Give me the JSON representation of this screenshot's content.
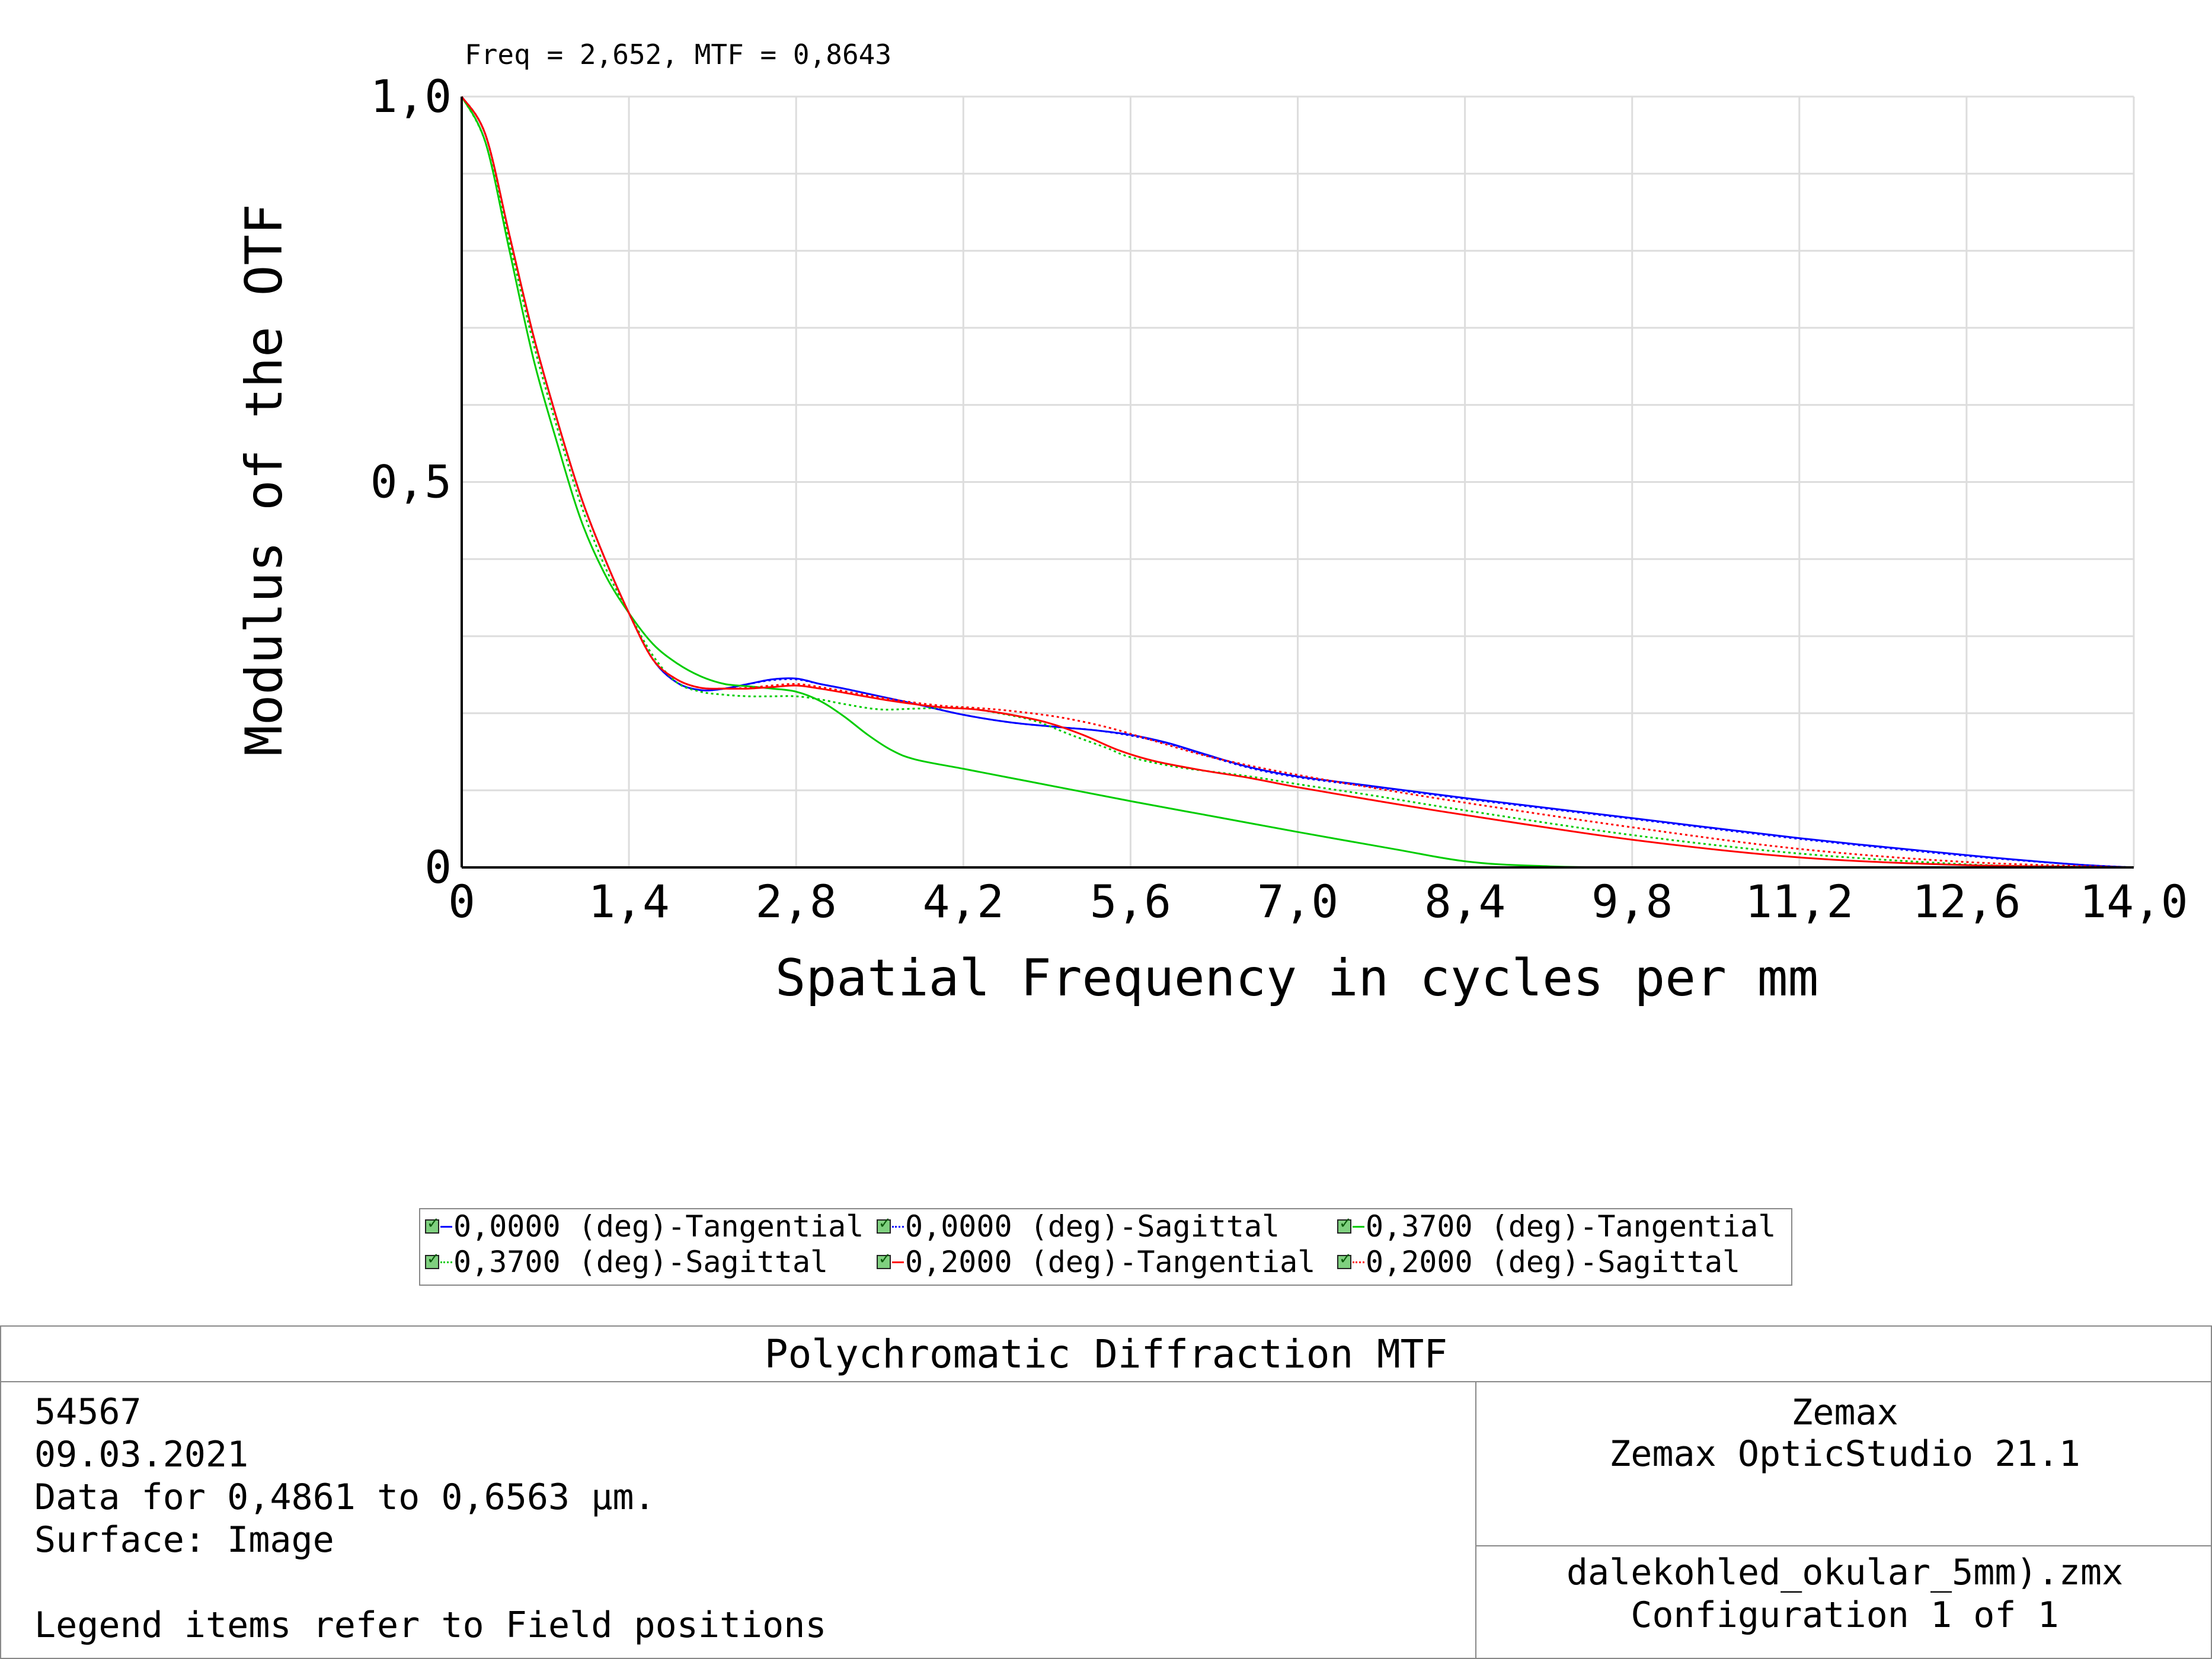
{
  "cursor_readout": "Freq = 2,652, MTF = 0,8643",
  "chart_data": {
    "type": "line",
    "title": "Polychromatic Diffraction MTF",
    "xlabel": "Spatial Frequency in cycles per mm",
    "ylabel": "Modulus of the OTF",
    "xlim": [
      0,
      14.0
    ],
    "ylim": [
      0,
      1.0
    ],
    "x_ticks": [
      "0",
      "1,4",
      "2,8",
      "4,2",
      "5,6",
      "7,0",
      "8,4",
      "9,8",
      "11,2",
      "12,6",
      "14,0"
    ],
    "y_ticks": [
      "0",
      "0,5",
      "1,0"
    ],
    "grid": true,
    "legend_position": "bottom",
    "series": [
      {
        "name": "0,0000 (deg)-Tangential",
        "color": "#0000ff",
        "style": "solid",
        "points": [
          [
            0,
            1.0
          ],
          [
            0.2,
            0.95
          ],
          [
            0.4,
            0.82
          ],
          [
            0.6,
            0.69
          ],
          [
            0.8,
            0.58
          ],
          [
            1.0,
            0.48
          ],
          [
            1.2,
            0.4
          ],
          [
            1.4,
            0.33
          ],
          [
            1.6,
            0.27
          ],
          [
            1.8,
            0.24
          ],
          [
            2.0,
            0.23
          ],
          [
            2.2,
            0.232
          ],
          [
            2.4,
            0.238
          ],
          [
            2.6,
            0.244
          ],
          [
            2.8,
            0.245
          ],
          [
            3.0,
            0.238
          ],
          [
            3.2,
            0.232
          ],
          [
            3.5,
            0.222
          ],
          [
            3.8,
            0.212
          ],
          [
            4.2,
            0.198
          ],
          [
            4.6,
            0.188
          ],
          [
            5.0,
            0.182
          ],
          [
            5.3,
            0.178
          ],
          [
            5.6,
            0.172
          ],
          [
            5.9,
            0.162
          ],
          [
            6.2,
            0.148
          ],
          [
            6.6,
            0.13
          ],
          [
            7.0,
            0.118
          ],
          [
            7.6,
            0.106
          ],
          [
            8.4,
            0.09
          ],
          [
            9.8,
            0.064
          ],
          [
            11.2,
            0.038
          ],
          [
            12.6,
            0.016
          ],
          [
            13.5,
            0.004
          ],
          [
            14.0,
            0.0
          ]
        ]
      },
      {
        "name": "0,0000 (deg)-Sagittal",
        "color": "#0000ff",
        "style": "dotted",
        "points": [
          [
            0,
            1.0
          ],
          [
            0.2,
            0.95
          ],
          [
            0.4,
            0.82
          ],
          [
            0.6,
            0.69
          ],
          [
            0.8,
            0.58
          ],
          [
            1.0,
            0.48
          ],
          [
            1.2,
            0.4
          ],
          [
            1.4,
            0.33
          ],
          [
            1.6,
            0.27
          ],
          [
            1.8,
            0.24
          ],
          [
            2.0,
            0.23
          ],
          [
            2.2,
            0.232
          ],
          [
            2.4,
            0.238
          ],
          [
            2.6,
            0.243
          ],
          [
            2.8,
            0.244
          ],
          [
            3.0,
            0.238
          ],
          [
            3.2,
            0.232
          ],
          [
            3.5,
            0.222
          ],
          [
            3.8,
            0.212
          ],
          [
            4.2,
            0.198
          ],
          [
            4.6,
            0.188
          ],
          [
            5.0,
            0.182
          ],
          [
            5.3,
            0.178
          ],
          [
            5.6,
            0.171
          ],
          [
            5.9,
            0.161
          ],
          [
            6.2,
            0.147
          ],
          [
            6.6,
            0.129
          ],
          [
            7.0,
            0.117
          ],
          [
            7.6,
            0.105
          ],
          [
            8.4,
            0.089
          ],
          [
            9.8,
            0.063
          ],
          [
            11.2,
            0.037
          ],
          [
            12.6,
            0.015
          ],
          [
            13.5,
            0.004
          ],
          [
            14.0,
            0.0
          ]
        ]
      },
      {
        "name": "0,3700 (deg)-Tangential",
        "color": "#00cc00",
        "style": "solid",
        "points": [
          [
            0,
            1.0
          ],
          [
            0.2,
            0.94
          ],
          [
            0.4,
            0.8
          ],
          [
            0.6,
            0.66
          ],
          [
            0.8,
            0.55
          ],
          [
            1.0,
            0.45
          ],
          [
            1.2,
            0.38
          ],
          [
            1.4,
            0.33
          ],
          [
            1.6,
            0.29
          ],
          [
            1.8,
            0.265
          ],
          [
            2.0,
            0.248
          ],
          [
            2.2,
            0.238
          ],
          [
            2.4,
            0.235
          ],
          [
            2.6,
            0.232
          ],
          [
            2.8,
            0.228
          ],
          [
            3.0,
            0.216
          ],
          [
            3.2,
            0.196
          ],
          [
            3.4,
            0.172
          ],
          [
            3.6,
            0.152
          ],
          [
            3.8,
            0.14
          ],
          [
            4.2,
            0.128
          ],
          [
            4.6,
            0.116
          ],
          [
            5.0,
            0.104
          ],
          [
            5.6,
            0.086
          ],
          [
            6.3,
            0.066
          ],
          [
            7.0,
            0.046
          ],
          [
            7.8,
            0.024
          ],
          [
            8.4,
            0.008
          ],
          [
            9.0,
            0.002
          ],
          [
            10.0,
            0.0
          ],
          [
            14.0,
            0.0
          ]
        ]
      },
      {
        "name": "0,3700 (deg)-Sagittal",
        "color": "#00cc00",
        "style": "dotted",
        "points": [
          [
            0,
            1.0
          ],
          [
            0.2,
            0.94
          ],
          [
            0.4,
            0.81
          ],
          [
            0.6,
            0.68
          ],
          [
            0.8,
            0.57
          ],
          [
            1.0,
            0.47
          ],
          [
            1.2,
            0.39
          ],
          [
            1.4,
            0.33
          ],
          [
            1.6,
            0.275
          ],
          [
            1.8,
            0.24
          ],
          [
            2.0,
            0.228
          ],
          [
            2.2,
            0.224
          ],
          [
            2.4,
            0.222
          ],
          [
            2.6,
            0.222
          ],
          [
            2.8,
            0.222
          ],
          [
            3.0,
            0.218
          ],
          [
            3.2,
            0.212
          ],
          [
            3.5,
            0.205
          ],
          [
            3.8,
            0.206
          ],
          [
            4.2,
            0.207
          ],
          [
            4.5,
            0.2
          ],
          [
            4.8,
            0.19
          ],
          [
            5.1,
            0.172
          ],
          [
            5.4,
            0.155
          ],
          [
            5.6,
            0.143
          ],
          [
            6.0,
            0.13
          ],
          [
            6.6,
            0.118
          ],
          [
            7.0,
            0.108
          ],
          [
            7.6,
            0.094
          ],
          [
            8.4,
            0.074
          ],
          [
            9.8,
            0.042
          ],
          [
            11.2,
            0.018
          ],
          [
            12.6,
            0.004
          ],
          [
            13.5,
            0.001
          ],
          [
            14.0,
            0.0
          ]
        ]
      },
      {
        "name": "0,2000 (deg)-Tangential",
        "color": "#ff0000",
        "style": "solid",
        "points": [
          [
            0,
            1.0
          ],
          [
            0.2,
            0.95
          ],
          [
            0.4,
            0.82
          ],
          [
            0.6,
            0.69
          ],
          [
            0.8,
            0.58
          ],
          [
            1.0,
            0.48
          ],
          [
            1.2,
            0.4
          ],
          [
            1.4,
            0.33
          ],
          [
            1.6,
            0.27
          ],
          [
            1.8,
            0.244
          ],
          [
            2.0,
            0.233
          ],
          [
            2.2,
            0.232
          ],
          [
            2.4,
            0.232
          ],
          [
            2.6,
            0.234
          ],
          [
            2.8,
            0.236
          ],
          [
            3.0,
            0.232
          ],
          [
            3.3,
            0.224
          ],
          [
            3.6,
            0.216
          ],
          [
            4.0,
            0.208
          ],
          [
            4.3,
            0.205
          ],
          [
            4.6,
            0.198
          ],
          [
            4.9,
            0.188
          ],
          [
            5.2,
            0.172
          ],
          [
            5.5,
            0.152
          ],
          [
            5.8,
            0.138
          ],
          [
            6.2,
            0.126
          ],
          [
            6.6,
            0.116
          ],
          [
            7.0,
            0.104
          ],
          [
            7.6,
            0.088
          ],
          [
            8.4,
            0.068
          ],
          [
            9.8,
            0.036
          ],
          [
            11.2,
            0.013
          ],
          [
            12.6,
            0.003
          ],
          [
            14.0,
            0.0
          ]
        ]
      },
      {
        "name": "0,2000 (deg)-Sagittal",
        "color": "#ff0000",
        "style": "dotted",
        "points": [
          [
            0,
            1.0
          ],
          [
            0.2,
            0.95
          ],
          [
            0.4,
            0.82
          ],
          [
            0.6,
            0.69
          ],
          [
            0.8,
            0.58
          ],
          [
            1.0,
            0.48
          ],
          [
            1.2,
            0.4
          ],
          [
            1.4,
            0.33
          ],
          [
            1.6,
            0.27
          ],
          [
            1.8,
            0.244
          ],
          [
            2.0,
            0.233
          ],
          [
            2.2,
            0.232
          ],
          [
            2.4,
            0.233
          ],
          [
            2.6,
            0.236
          ],
          [
            2.8,
            0.238
          ],
          [
            3.0,
            0.234
          ],
          [
            3.3,
            0.226
          ],
          [
            3.6,
            0.218
          ],
          [
            4.0,
            0.21
          ],
          [
            4.3,
            0.207
          ],
          [
            4.6,
            0.203
          ],
          [
            5.0,
            0.195
          ],
          [
            5.4,
            0.182
          ],
          [
            5.8,
            0.164
          ],
          [
            6.2,
            0.146
          ],
          [
            6.6,
            0.132
          ],
          [
            7.0,
            0.12
          ],
          [
            7.6,
            0.104
          ],
          [
            8.4,
            0.084
          ],
          [
            9.8,
            0.052
          ],
          [
            11.2,
            0.024
          ],
          [
            12.6,
            0.007
          ],
          [
            14.0,
            0.0
          ]
        ]
      }
    ]
  },
  "legend": {
    "items": [
      {
        "label": "0,0000 (deg)-Tangential",
        "color": "#0000ff",
        "style": "solid"
      },
      {
        "label": "0,0000 (deg)-Sagittal",
        "color": "#0000ff",
        "style": "dotted"
      },
      {
        "label": "0,3700 (deg)-Tangential",
        "color": "#00cc00",
        "style": "solid"
      },
      {
        "label": "0,3700 (deg)-Sagittal",
        "color": "#00cc00",
        "style": "dotted"
      },
      {
        "label": "0,2000 (deg)-Tangential",
        "color": "#ff0000",
        "style": "solid"
      },
      {
        "label": "0,2000 (deg)-Sagittal",
        "color": "#ff0000",
        "style": "dotted"
      }
    ]
  },
  "info": {
    "title": "Polychromatic Diffraction MTF",
    "lines": [
      "54567",
      "09.03.2021",
      "Data for 0,4861 to 0,6563 µm.",
      "Surface: Image",
      "",
      "Legend items refer to Field positions"
    ],
    "company": "Zemax",
    "product": "Zemax OpticStudio 21.1",
    "file": "dalekohled_okular_5mm).zmx",
    "configuration": "Configuration 1 of 1"
  }
}
